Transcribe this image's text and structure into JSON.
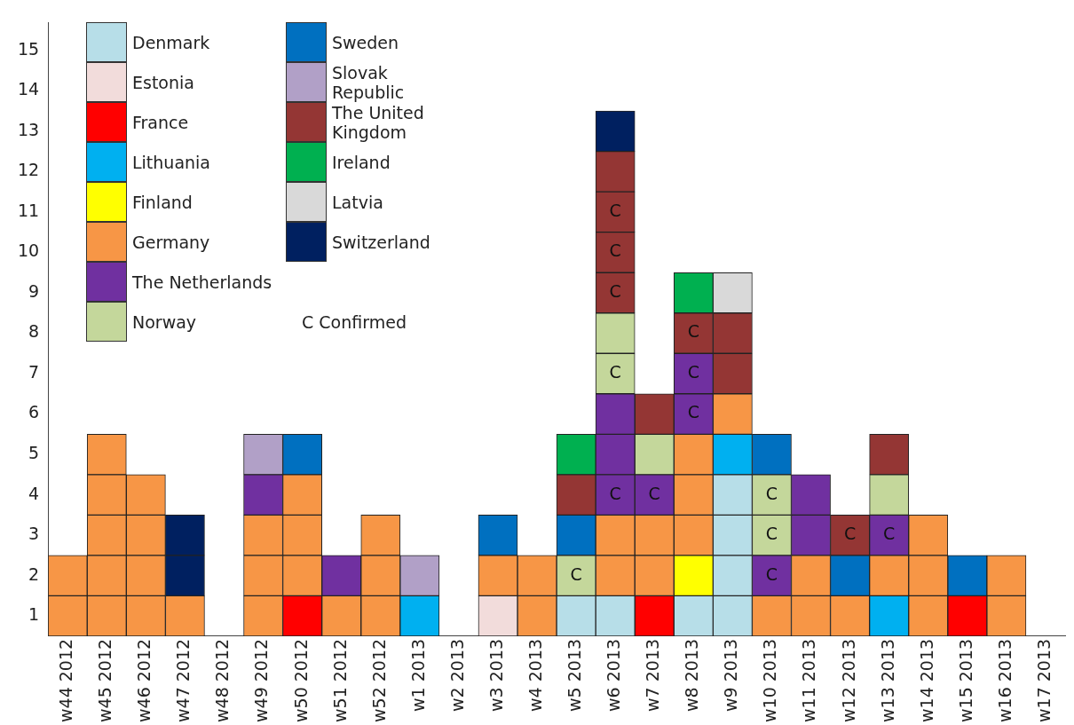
{
  "chart_data": {
    "type": "bar",
    "stacked": true,
    "legend": "top left",
    "categories": [
      "w44 2012",
      "w45 2012",
      "w46 2012",
      "w47 2012",
      "w48 2012",
      "w49 2012",
      "w50 2012",
      "w51 2012",
      "w52 2012",
      "w1 2013",
      "w2 2013",
      "w3 2013",
      "w4 2013",
      "w5 2013",
      "w6 2013",
      "w7 2013",
      "w8 2013",
      "w9 2013",
      "w10 2013",
      "w11 2013",
      "w12 2013",
      "w13 2013",
      "w14 2013",
      "w15 2013",
      "w16 2013",
      "w17 2013"
    ],
    "ylim": [
      0,
      15.2
    ],
    "yticks": [
      {
        "value": 0.5,
        "label": "1"
      },
      {
        "value": 1.5,
        "label": "2"
      },
      {
        "value": 2.5,
        "label": "3"
      },
      {
        "value": 3.5,
        "label": "4"
      },
      {
        "value": 4.5,
        "label": "5"
      },
      {
        "value": 5.5,
        "label": "6"
      },
      {
        "value": 6.5,
        "label": "7"
      },
      {
        "value": 7.5,
        "label": "8"
      },
      {
        "value": 8.5,
        "label": "9"
      },
      {
        "value": 9.5,
        "label": "10"
      },
      {
        "value": 10.5,
        "label": "11"
      },
      {
        "value": 11.5,
        "label": "12"
      },
      {
        "value": 12.5,
        "label": "13"
      },
      {
        "value": 13.5,
        "label": "14"
      },
      {
        "value": 14.5,
        "label": "15"
      }
    ],
    "grid": false,
    "series": [
      {
        "name": "Denmark",
        "color": "#b7dee8",
        "values": [
          null,
          null,
          null,
          null,
          null,
          null,
          null,
          null,
          null,
          null,
          null,
          null,
          null,
          1,
          1,
          null,
          1,
          1,
          null,
          null,
          null,
          null,
          null,
          null,
          null,
          null
        ]
      },
      {
        "color": "#b7dee8",
        "values": [
          null,
          null,
          null,
          null,
          null,
          null,
          null,
          null,
          null,
          null,
          null,
          null,
          null,
          null,
          null,
          null,
          null,
          1,
          null,
          null,
          null,
          null,
          null,
          null,
          null,
          null
        ]
      },
      {
        "color": "#b7dee8",
        "values": [
          null,
          null,
          null,
          null,
          null,
          null,
          null,
          null,
          null,
          null,
          null,
          null,
          null,
          null,
          null,
          null,
          null,
          1,
          null,
          null,
          null,
          null,
          null,
          null,
          null,
          null
        ]
      },
      {
        "color": "#b7dee8",
        "values": [
          null,
          null,
          null,
          null,
          null,
          null,
          null,
          null,
          null,
          null,
          null,
          null,
          null,
          null,
          null,
          null,
          null,
          1,
          null,
          null,
          null,
          null,
          null,
          null,
          null,
          null
        ]
      },
      {
        "name": "Estonia",
        "color": "#f2dcdb",
        "values": [
          null,
          null,
          null,
          null,
          null,
          null,
          null,
          null,
          null,
          null,
          null,
          1,
          null,
          null,
          null,
          null,
          null,
          null,
          null,
          null,
          null,
          null,
          null,
          null,
          null,
          null
        ]
      },
      {
        "name": "France",
        "color": "#ff0000",
        "values": [
          null,
          null,
          null,
          null,
          null,
          null,
          1,
          null,
          null,
          null,
          null,
          null,
          null,
          null,
          null,
          1,
          null,
          null,
          null,
          null,
          null,
          null,
          null,
          1,
          null,
          null
        ]
      },
      {
        "name": "Lithuania",
        "color": "#00b0f0",
        "values": [
          null,
          null,
          null,
          null,
          null,
          null,
          null,
          null,
          null,
          1,
          null,
          null,
          null,
          null,
          null,
          null,
          null,
          1,
          null,
          null,
          null,
          1,
          null,
          null,
          null,
          null
        ]
      },
      {
        "name": "Finland",
        "color": "#ffff00",
        "values": [
          null,
          null,
          null,
          null,
          null,
          null,
          null,
          null,
          null,
          null,
          null,
          null,
          null,
          null,
          null,
          null,
          1,
          null,
          null,
          null,
          null,
          null,
          null,
          null,
          null,
          null
        ]
      },
      {
        "name": "Germany",
        "color": "#f79646",
        "values": [
          1,
          1,
          1,
          1,
          null,
          1,
          1,
          1,
          1,
          null,
          null,
          1,
          1,
          null,
          1,
          1,
          1,
          1,
          1,
          1,
          1,
          1,
          1,
          null,
          1,
          null
        ]
      },
      {
        "color": "#f79646",
        "values": [
          1,
          1,
          1,
          null,
          null,
          1,
          1,
          null,
          1,
          null,
          null,
          null,
          1,
          null,
          1,
          1,
          1,
          null,
          null,
          1,
          null,
          null,
          1,
          null,
          1,
          null
        ]
      },
      {
        "color": "#f79646",
        "values": [
          null,
          1,
          1,
          null,
          null,
          1,
          1,
          null,
          1,
          null,
          null,
          null,
          null,
          null,
          null,
          null,
          1,
          null,
          null,
          null,
          null,
          null,
          1,
          null,
          null,
          null
        ]
      },
      {
        "color": "#f79646",
        "values": [
          null,
          1,
          1,
          null,
          null,
          null,
          null,
          null,
          null,
          null,
          null,
          null,
          null,
          null,
          null,
          null,
          null,
          null,
          null,
          null,
          null,
          null,
          null,
          null,
          null,
          null
        ]
      },
      {
        "color": "#f79646",
        "values": [
          null,
          1,
          null,
          null,
          null,
          null,
          null,
          null,
          null,
          null,
          null,
          null,
          null,
          null,
          null,
          null,
          null,
          null,
          null,
          null,
          null,
          null,
          null,
          null,
          null,
          null
        ]
      },
      {
        "name": "The Netherlands",
        "color": "#7030a0",
        "values": [
          null,
          null,
          null,
          null,
          null,
          1,
          null,
          1,
          null,
          null,
          null,
          null,
          null,
          null,
          1,
          1,
          1,
          null,
          1,
          1,
          null,
          1,
          null,
          null,
          null,
          null
        ],
        "value_labels": [
          null,
          null,
          null,
          null,
          null,
          null,
          null,
          null,
          null,
          null,
          null,
          null,
          null,
          null,
          "C",
          "C",
          "C",
          null,
          "C",
          null,
          null,
          "C",
          null,
          null,
          null,
          null
        ]
      },
      {
        "color": "#7030a0",
        "values": [
          null,
          null,
          null,
          null,
          null,
          null,
          null,
          null,
          null,
          null,
          null,
          null,
          null,
          null,
          1,
          null,
          1,
          null,
          null,
          1,
          null,
          null,
          null,
          null,
          null,
          null
        ],
        "value_labels": [
          null,
          null,
          null,
          null,
          null,
          null,
          null,
          null,
          null,
          null,
          null,
          null,
          null,
          null,
          null,
          null,
          "C",
          null,
          null,
          null,
          null,
          null,
          null,
          null,
          null,
          null
        ]
      },
      {
        "color": "#7030a0",
        "values": [
          null,
          null,
          null,
          null,
          null,
          null,
          null,
          null,
          null,
          null,
          null,
          null,
          null,
          null,
          1,
          null,
          null,
          null,
          null,
          null,
          null,
          null,
          null,
          null,
          null,
          null
        ]
      },
      {
        "name": "Norway",
        "color": "#c4d79b",
        "values": [
          null,
          null,
          null,
          null,
          null,
          null,
          null,
          null,
          null,
          null,
          null,
          null,
          null,
          1,
          1,
          1,
          null,
          null,
          1,
          null,
          null,
          1,
          null,
          null,
          null,
          null
        ],
        "value_labels": [
          null,
          null,
          null,
          null,
          null,
          null,
          null,
          null,
          null,
          null,
          null,
          null,
          null,
          "C",
          "C",
          null,
          null,
          null,
          "C",
          null,
          null,
          null,
          null,
          null,
          null,
          null
        ]
      },
      {
        "color": "#c4d79b",
        "values": [
          null,
          null,
          null,
          null,
          null,
          null,
          null,
          null,
          null,
          null,
          null,
          null,
          null,
          null,
          1,
          null,
          null,
          null,
          1,
          null,
          null,
          null,
          null,
          null,
          null,
          null
        ],
        "value_labels": [
          null,
          null,
          null,
          null,
          null,
          null,
          null,
          null,
          null,
          null,
          null,
          null,
          null,
          null,
          null,
          null,
          null,
          null,
          "C",
          null,
          null,
          null,
          null,
          null,
          null,
          null
        ]
      },
      {
        "name": "Sweden",
        "color": "#0070c0",
        "values": [
          null,
          null,
          null,
          null,
          null,
          null,
          1,
          null,
          null,
          null,
          null,
          1,
          null,
          1,
          null,
          null,
          null,
          null,
          1,
          null,
          1,
          null,
          null,
          1,
          null,
          null
        ]
      },
      {
        "name": "Slovak Republic",
        "color": "#b1a0c7",
        "values": [
          null,
          null,
          null,
          null,
          null,
          1,
          null,
          null,
          null,
          1,
          null,
          null,
          null,
          null,
          null,
          null,
          null,
          null,
          null,
          null,
          null,
          null,
          null,
          null,
          null,
          null
        ]
      },
      {
        "name": "The United Kingdom",
        "color": "#943634",
        "values": [
          null,
          null,
          null,
          null,
          null,
          null,
          null,
          null,
          null,
          null,
          null,
          null,
          null,
          1,
          1,
          1,
          1,
          1,
          null,
          null,
          1,
          1,
          null,
          null,
          null,
          null
        ],
        "value_labels": [
          null,
          null,
          null,
          null,
          null,
          null,
          null,
          null,
          null,
          null,
          null,
          null,
          null,
          null,
          "C",
          null,
          "C",
          null,
          null,
          null,
          "C",
          null,
          null,
          null,
          null,
          null
        ]
      },
      {
        "color": "#943634",
        "values": [
          null,
          null,
          null,
          null,
          null,
          null,
          null,
          null,
          null,
          null,
          null,
          null,
          null,
          null,
          1,
          null,
          null,
          1,
          null,
          null,
          null,
          null,
          null,
          null,
          null,
          null
        ],
        "value_labels": [
          null,
          null,
          null,
          null,
          null,
          null,
          null,
          null,
          null,
          null,
          null,
          null,
          null,
          null,
          "C",
          null,
          null,
          null,
          null,
          null,
          null,
          null,
          null,
          null,
          null,
          null
        ]
      },
      {
        "color": "#943634",
        "values": [
          null,
          null,
          null,
          null,
          null,
          null,
          null,
          null,
          null,
          null,
          null,
          null,
          null,
          null,
          1,
          null,
          null,
          null,
          null,
          null,
          null,
          null,
          null,
          null,
          null,
          null
        ],
        "value_labels": [
          null,
          null,
          null,
          null,
          null,
          null,
          null,
          null,
          null,
          null,
          null,
          null,
          null,
          null,
          "C",
          null,
          null,
          null,
          null,
          null,
          null,
          null,
          null,
          null,
          null,
          null
        ]
      },
      {
        "color": "#943634",
        "values": [
          null,
          null,
          null,
          null,
          null,
          null,
          null,
          null,
          null,
          null,
          null,
          null,
          null,
          null,
          1,
          null,
          null,
          null,
          null,
          null,
          null,
          null,
          null,
          null,
          null,
          null
        ]
      },
      {
        "name": "Ireland",
        "color": "#00b050",
        "values": [
          null,
          null,
          null,
          null,
          null,
          null,
          null,
          null,
          null,
          null,
          null,
          null,
          null,
          1,
          null,
          null,
          1,
          null,
          null,
          null,
          null,
          null,
          null,
          null,
          null,
          null
        ]
      },
      {
        "name": "Latvia",
        "color": "#d9d9d9",
        "values": [
          null,
          null,
          null,
          null,
          null,
          null,
          null,
          null,
          null,
          null,
          null,
          null,
          null,
          null,
          null,
          null,
          null,
          1,
          null,
          null,
          null,
          null,
          null,
          null,
          null,
          null
        ]
      },
      {
        "name": "Switzerland",
        "color": "#002060",
        "values": [
          null,
          null,
          null,
          1,
          null,
          null,
          null,
          null,
          null,
          null,
          null,
          null,
          null,
          null,
          1,
          null,
          null,
          null,
          null,
          null,
          null,
          null,
          null,
          null,
          null,
          null
        ]
      },
      {
        "color": "#002060",
        "values": [
          null,
          null,
          null,
          1,
          null,
          null,
          null,
          null,
          null,
          null,
          null,
          null,
          null,
          null,
          null,
          null,
          null,
          null,
          null,
          null,
          null,
          null,
          null,
          null,
          null,
          null
        ]
      }
    ],
    "annotations": [
      "C Confirmed"
    ]
  }
}
